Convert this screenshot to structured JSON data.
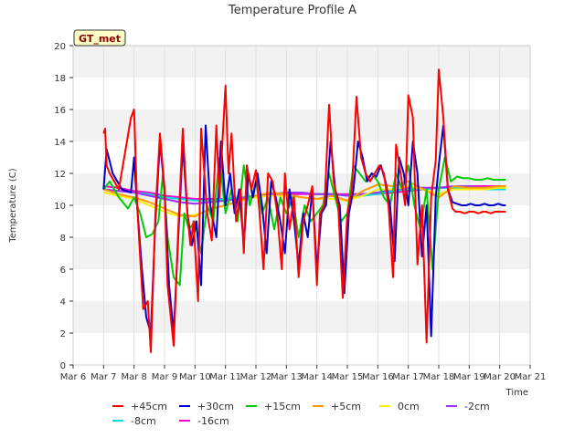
{
  "chart_data": {
    "type": "line",
    "title": "Temperature Profile A",
    "xlabel": "Time",
    "ylabel": "Temperature (C)",
    "badge": "GT_met",
    "xlim": [
      0,
      15
    ],
    "ylim": [
      0,
      20
    ],
    "x_ticks": [
      "Mar 6",
      "Mar 7",
      "Mar 8",
      "Mar 9",
      "Mar 10",
      "Mar 11",
      "Mar 12",
      "Mar 13",
      "Mar 14",
      "Mar 15",
      "Mar 16",
      "Mar 17",
      "Mar 18",
      "Mar 19",
      "Mar 20",
      "Mar 21"
    ],
    "y_ticks": [
      0,
      2,
      4,
      6,
      8,
      10,
      12,
      14,
      16,
      18,
      20
    ],
    "grid": "horizontal bands",
    "legend_position": "bottom",
    "series": [
      {
        "name": "+45cm",
        "color": "#ff0000",
        "x": [
          1.0,
          1.05,
          1.1,
          1.2,
          1.5,
          1.9,
          2.0,
          2.1,
          2.3,
          2.45,
          2.55,
          2.7,
          2.85,
          3.0,
          3.1,
          3.3,
          3.45,
          3.6,
          3.75,
          3.85,
          3.95,
          4.1,
          4.2,
          4.4,
          4.55,
          4.7,
          4.8,
          5.0,
          5.1,
          5.2,
          5.35,
          5.5,
          5.6,
          5.7,
          5.85,
          6.0,
          6.1,
          6.25,
          6.4,
          6.55,
          6.7,
          6.85,
          6.95,
          7.1,
          7.25,
          7.4,
          7.55,
          7.7,
          7.85,
          8.0,
          8.1,
          8.25,
          8.4,
          8.55,
          8.7,
          8.85,
          9.0,
          9.15,
          9.3,
          9.45,
          9.6,
          9.75,
          9.9,
          10.05,
          10.2,
          10.35,
          10.5,
          10.6,
          10.75,
          10.9,
          11.0,
          11.15,
          11.3,
          11.45,
          11.6,
          11.75,
          11.9,
          12.0,
          12.15,
          12.3,
          12.45,
          12.55,
          12.7,
          12.85,
          13.0,
          13.15,
          13.3,
          13.45,
          13.55,
          13.7,
          13.85,
          14.0,
          14.1,
          14.2
        ],
        "y": [
          14.5,
          14.8,
          12.5,
          12.0,
          11.0,
          15.5,
          16.0,
          10.0,
          3.5,
          4.0,
          0.8,
          9.5,
          14.5,
          11.0,
          5.0,
          1.2,
          8.5,
          14.8,
          9.5,
          7.5,
          9.0,
          4.0,
          14.8,
          9.5,
          7.8,
          15.0,
          10.5,
          17.5,
          12.0,
          14.5,
          9.0,
          11.0,
          7.0,
          12.5,
          11.0,
          12.2,
          10.0,
          6.0,
          12.0,
          11.5,
          9.5,
          6.0,
          12.0,
          8.5,
          10.5,
          5.5,
          9.0,
          10.0,
          11.2,
          5.0,
          9.5,
          10.0,
          16.3,
          11.5,
          10.0,
          4.2,
          9.5,
          11.0,
          16.8,
          13.0,
          12.0,
          11.5,
          12.0,
          12.5,
          12.0,
          10.0,
          5.5,
          13.8,
          12.0,
          10.0,
          16.9,
          15.5,
          6.3,
          10.0,
          1.4,
          10.5,
          12.8,
          18.5,
          15.5,
          11.0,
          9.8,
          9.6,
          9.6,
          9.5,
          9.6,
          9.6,
          9.5,
          9.6,
          9.6,
          9.5,
          9.6,
          9.6,
          9.6,
          9.6
        ]
      },
      {
        "name": "+30cm",
        "color": "#0000cc",
        "x": [
          1.0,
          1.1,
          1.3,
          1.6,
          1.9,
          2.0,
          2.1,
          2.25,
          2.4,
          2.55,
          2.7,
          2.85,
          3.0,
          3.15,
          3.3,
          3.45,
          3.6,
          3.75,
          3.9,
          4.05,
          4.2,
          4.35,
          4.5,
          4.7,
          4.85,
          5.0,
          5.15,
          5.3,
          5.45,
          5.6,
          5.75,
          5.9,
          6.05,
          6.2,
          6.35,
          6.5,
          6.65,
          6.8,
          6.95,
          7.1,
          7.25,
          7.4,
          7.55,
          7.7,
          7.85,
          8.0,
          8.15,
          8.3,
          8.45,
          8.6,
          8.75,
          8.9,
          9.05,
          9.2,
          9.35,
          9.5,
          9.65,
          9.8,
          9.95,
          10.1,
          10.25,
          10.4,
          10.55,
          10.7,
          10.85,
          11.0,
          11.15,
          11.3,
          11.45,
          11.6,
          11.75,
          11.9,
          12.0,
          12.15,
          12.3,
          12.45,
          12.6,
          12.75,
          12.9,
          13.05,
          13.2,
          13.35,
          13.5,
          13.65,
          13.8,
          13.95,
          14.1,
          14.2
        ],
        "y": [
          11.0,
          13.5,
          12.0,
          11.0,
          10.8,
          13.0,
          10.0,
          6.2,
          3.0,
          2.0,
          9.0,
          14.0,
          11.0,
          5.0,
          2.0,
          8.0,
          13.8,
          9.5,
          7.5,
          9.0,
          5.0,
          15.0,
          10.0,
          8.0,
          14.0,
          10.0,
          12.0,
          9.5,
          11.0,
          7.5,
          12.0,
          10.5,
          12.0,
          10.0,
          7.0,
          11.5,
          10.5,
          9.0,
          7.0,
          11.0,
          9.0,
          6.2,
          9.5,
          8.0,
          11.0,
          6.0,
          9.5,
          10.0,
          14.0,
          11.0,
          10.0,
          4.5,
          9.5,
          11.0,
          14.0,
          13.0,
          11.5,
          12.0,
          11.8,
          12.5,
          11.5,
          10.0,
          6.5,
          13.0,
          12.0,
          10.0,
          14.0,
          12.0,
          6.8,
          10.0,
          1.8,
          10.5,
          12.5,
          15.0,
          11.0,
          10.2,
          10.1,
          10.0,
          10.0,
          10.1,
          10.0,
          10.0,
          10.1,
          10.0,
          10.0,
          10.1,
          10.0,
          10.0
        ]
      },
      {
        "name": "+15cm",
        "color": "#00cc00",
        "x": [
          1.0,
          1.2,
          1.5,
          1.8,
          2.0,
          2.2,
          2.4,
          2.6,
          2.8,
          2.95,
          3.1,
          3.3,
          3.5,
          3.65,
          3.8,
          4.0,
          4.2,
          4.4,
          4.6,
          4.8,
          5.0,
          5.2,
          5.4,
          5.6,
          5.8,
          6.0,
          6.2,
          6.4,
          6.6,
          6.8,
          7.0,
          7.2,
          7.4,
          7.6,
          7.8,
          8.0,
          8.2,
          8.4,
          8.6,
          8.8,
          9.0,
          9.2,
          9.4,
          9.6,
          9.8,
          10.0,
          10.2,
          10.4,
          10.6,
          10.8,
          11.0,
          11.2,
          11.4,
          11.6,
          11.8,
          12.0,
          12.2,
          12.4,
          12.6,
          12.8,
          13.0,
          13.2,
          13.4,
          13.6,
          13.8,
          14.0,
          14.2
        ],
        "y": [
          11.0,
          11.5,
          10.5,
          9.8,
          10.5,
          9.5,
          8.0,
          8.2,
          9.0,
          12.0,
          8.0,
          5.5,
          5.0,
          9.5,
          8.5,
          9.0,
          7.0,
          10.0,
          9.0,
          13.0,
          9.5,
          11.0,
          9.0,
          12.5,
          10.0,
          11.5,
          9.5,
          10.5,
          8.5,
          10.5,
          9.5,
          10.5,
          8.0,
          10.0,
          9.0,
          9.5,
          10.0,
          12.0,
          10.5,
          9.0,
          9.5,
          12.5,
          12.0,
          11.5,
          12.0,
          11.5,
          10.5,
          10.0,
          12.0,
          11.0,
          12.5,
          10.0,
          8.5,
          11.0,
          6.0,
          11.0,
          13.0,
          11.5,
          11.8,
          11.7,
          11.7,
          11.6,
          11.6,
          11.7,
          11.6,
          11.6,
          11.6
        ]
      },
      {
        "name": "+5cm",
        "color": "#ff9900",
        "x": [
          1.0,
          1.5,
          2.0,
          2.5,
          3.0,
          3.5,
          4.0,
          4.5,
          5.0,
          5.5,
          6.0,
          6.5,
          7.0,
          7.5,
          8.0,
          8.5,
          9.0,
          9.5,
          10.0,
          10.5,
          11.0,
          11.5,
          12.0,
          12.5,
          13.0,
          13.5,
          14.0,
          14.2
        ],
        "y": [
          11.0,
          10.7,
          10.5,
          10.2,
          9.8,
          9.4,
          9.3,
          9.8,
          10.0,
          10.3,
          10.6,
          10.8,
          10.7,
          10.5,
          10.4,
          10.6,
          10.3,
          10.9,
          11.3,
          11.2,
          11.5,
          11.0,
          10.5,
          11.2,
          11.1,
          11.1,
          11.2,
          11.2
        ]
      },
      {
        "name": "0cm",
        "color": "#ffee00",
        "x": [
          1.0,
          1.5,
          2.0,
          2.5,
          3.0,
          3.5,
          4.0,
          4.5,
          5.0,
          5.5,
          6.0,
          6.5,
          7.0,
          7.5,
          8.0,
          8.5,
          9.0,
          9.5,
          10.0,
          10.5,
          11.0,
          11.5,
          12.0,
          12.5,
          13.0,
          13.5,
          14.0,
          14.2
        ],
        "y": [
          10.8,
          10.6,
          10.4,
          10.0,
          9.6,
          9.3,
          9.4,
          9.7,
          10.0,
          10.3,
          10.5,
          10.6,
          10.6,
          10.5,
          10.4,
          10.4,
          10.3,
          10.6,
          11.0,
          11.0,
          11.2,
          11.0,
          10.7,
          11.0,
          11.0,
          11.0,
          11.1,
          11.1
        ]
      },
      {
        "name": "-2cm",
        "color": "#9933ff",
        "x": [
          1.0,
          1.5,
          2.0,
          2.5,
          3.0,
          3.5,
          4.0,
          4.5,
          5.0,
          5.5,
          6.0,
          6.5,
          7.0,
          7.5,
          8.0,
          8.5,
          9.0,
          9.5,
          10.0,
          10.5,
          11.0,
          11.5,
          12.0,
          12.5,
          13.0,
          13.5,
          14.0,
          14.2
        ],
        "y": [
          11.0,
          10.9,
          10.8,
          10.6,
          10.4,
          10.2,
          10.1,
          10.2,
          10.3,
          10.4,
          10.6,
          10.7,
          10.8,
          10.8,
          10.7,
          10.7,
          10.6,
          10.7,
          10.8,
          11.0,
          11.1,
          11.1,
          11.1,
          11.2,
          11.2,
          11.1,
          11.1,
          11.1
        ]
      },
      {
        "name": "-8cm",
        "color": "#00dddd",
        "x": [
          1.0,
          1.5,
          2.0,
          2.5,
          3.0,
          3.5,
          4.0,
          4.5,
          5.0,
          5.5,
          6.0,
          6.5,
          7.0,
          7.5,
          8.0,
          8.5,
          9.0,
          9.5,
          10.0,
          10.5,
          11.0,
          11.5,
          12.0,
          12.5,
          13.0,
          13.5,
          14.0,
          14.2
        ],
        "y": [
          11.0,
          10.9,
          10.8,
          10.7,
          10.5,
          10.4,
          10.3,
          10.3,
          10.4,
          10.5,
          10.6,
          10.7,
          10.8,
          10.8,
          10.7,
          10.7,
          10.6,
          10.6,
          10.7,
          10.9,
          11.0,
          11.0,
          11.1,
          11.1,
          11.1,
          11.0,
          11.0,
          11.0
        ]
      },
      {
        "name": "-16cm",
        "color": "#ff00cc",
        "x": [
          1.0,
          1.5,
          2.0,
          2.5,
          3.0,
          3.5,
          4.0,
          4.5,
          5.0,
          5.5,
          6.0,
          6.5,
          7.0,
          7.5,
          8.0,
          8.5,
          9.0,
          9.5,
          10.0,
          10.5,
          11.0,
          11.5,
          12.0,
          12.5,
          13.0,
          13.5,
          14.0,
          14.2
        ],
        "y": [
          11.2,
          11.1,
          10.9,
          10.8,
          10.6,
          10.5,
          10.4,
          10.4,
          10.4,
          10.5,
          10.6,
          10.6,
          10.7,
          10.7,
          10.7,
          10.7,
          10.7,
          10.7,
          10.7,
          10.8,
          10.9,
          11.0,
          11.1,
          11.1,
          11.2,
          11.2,
          11.2,
          11.2
        ]
      }
    ]
  }
}
